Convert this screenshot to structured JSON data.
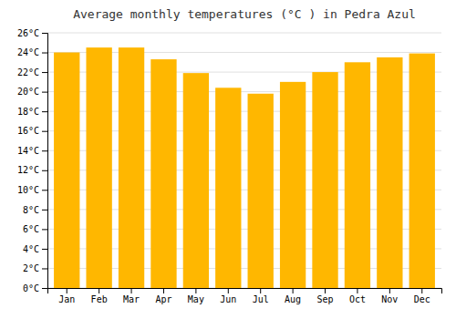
{
  "chart_data": {
    "type": "bar",
    "title": "Average monthly temperatures (°C ) in Pedra Azul",
    "categories": [
      "Jan",
      "Feb",
      "Mar",
      "Apr",
      "May",
      "Jun",
      "Jul",
      "Aug",
      "Sep",
      "Oct",
      "Nov",
      "Dec"
    ],
    "values": [
      24.0,
      24.5,
      24.5,
      23.3,
      21.9,
      20.4,
      19.8,
      21.0,
      22.0,
      23.0,
      23.5,
      23.9
    ],
    "color": "#FFB700",
    "ylim": [
      0,
      26
    ],
    "yticks": [
      {
        "value": 0,
        "label": "0°C"
      },
      {
        "value": 2,
        "label": "2°C"
      },
      {
        "value": 4,
        "label": "4°C"
      },
      {
        "value": 6,
        "label": "6°C"
      },
      {
        "value": 8,
        "label": "8°C"
      },
      {
        "value": 10,
        "label": "10°C"
      },
      {
        "value": 12,
        "label": "12°C"
      },
      {
        "value": 14,
        "label": "14°C"
      },
      {
        "value": 16,
        "label": "16°C"
      },
      {
        "value": 18,
        "label": "18°C"
      },
      {
        "value": 20,
        "label": "20°C"
      },
      {
        "value": 22,
        "label": "22°C"
      },
      {
        "value": 24,
        "label": "24°C"
      },
      {
        "value": 26,
        "label": "26°C"
      }
    ],
    "grid": true
  }
}
